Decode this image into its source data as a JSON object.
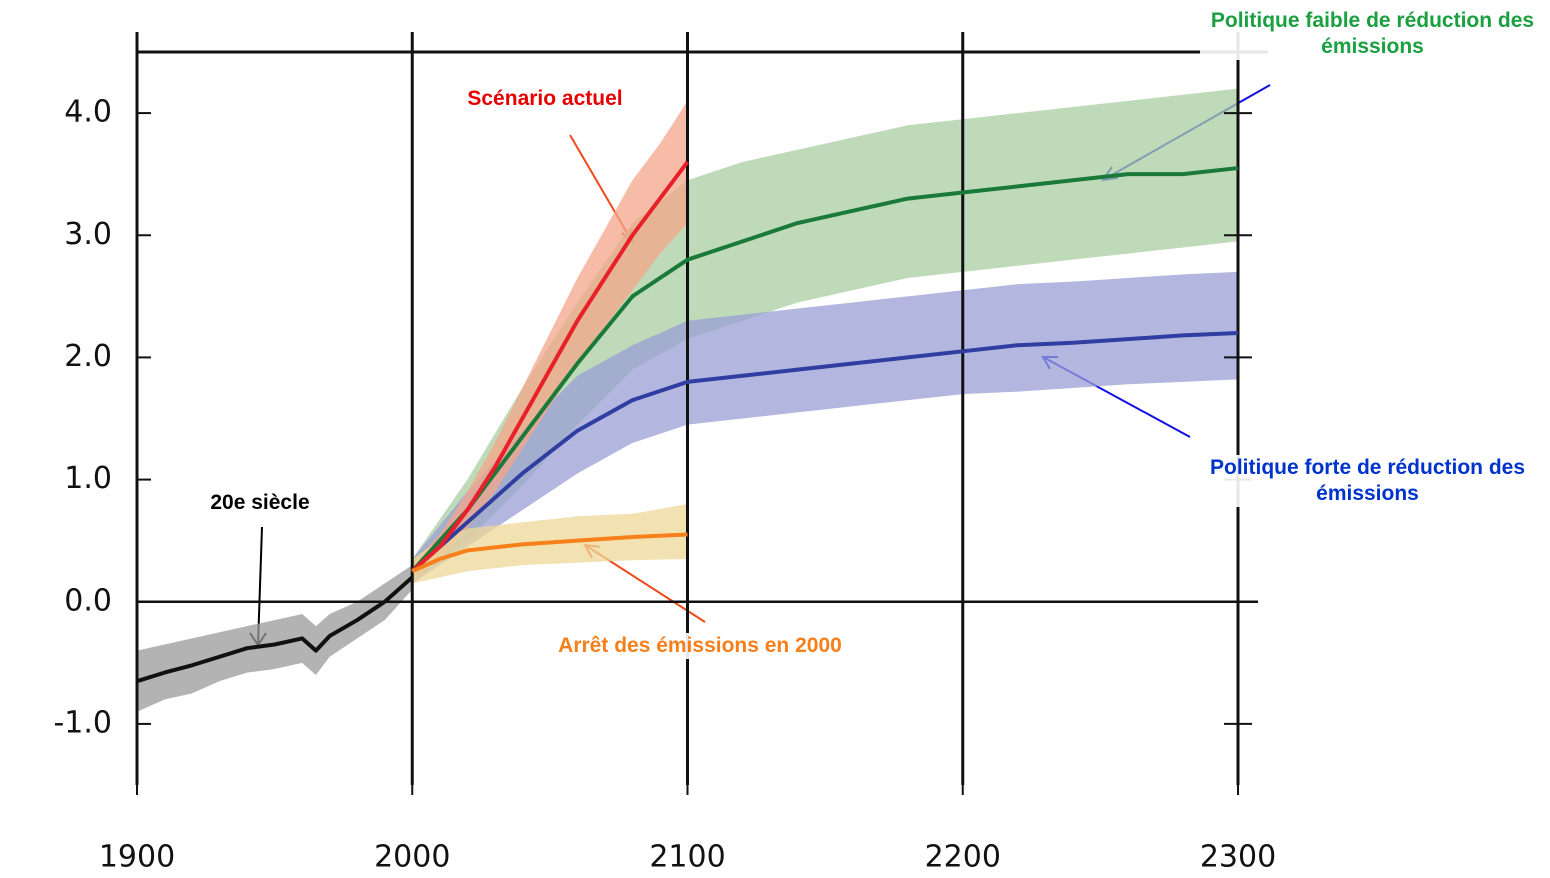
{
  "chart_data": {
    "type": "line",
    "xlim": [
      1900,
      2300
    ],
    "xticks": [
      1900,
      2000,
      2100,
      2200,
      2300
    ],
    "ylim": [
      -1.5,
      4.5
    ],
    "yticks": [
      {
        "value": -1,
        "label": "-1.0"
      },
      {
        "value": 0,
        "label": "0.0"
      },
      {
        "value": 1,
        "label": "1.0"
      },
      {
        "value": 2,
        "label": "2.0"
      },
      {
        "value": 3,
        "label": "3.0"
      },
      {
        "value": 4,
        "label": "4.0"
      }
    ],
    "vlines": [
      2000,
      2100,
      2200
    ],
    "hline": 0,
    "series": [
      {
        "name": "Politique faible de réduction des émissions",
        "color": "#1a7a3a",
        "band_color": "#a9cda0",
        "label_color": "#1aa040",
        "x": [
          2000,
          2020,
          2040,
          2060,
          2080,
          2100,
          2120,
          2140,
          2160,
          2180,
          2200,
          2220,
          2240,
          2260,
          2280,
          2300
        ],
        "values": [
          0.25,
          0.75,
          1.35,
          1.95,
          2.5,
          2.8,
          2.95,
          3.1,
          3.2,
          3.3,
          3.35,
          3.4,
          3.45,
          3.5,
          3.5,
          3.55
        ],
        "lower": [
          0.15,
          0.5,
          0.95,
          1.45,
          1.9,
          2.15,
          2.3,
          2.45,
          2.55,
          2.65,
          2.7,
          2.75,
          2.8,
          2.85,
          2.9,
          2.95
        ],
        "upper": [
          0.35,
          1.0,
          1.75,
          2.45,
          3.1,
          3.45,
          3.6,
          3.7,
          3.8,
          3.9,
          3.95,
          4.0,
          4.05,
          4.1,
          4.15,
          4.2
        ]
      },
      {
        "name": "Politique forte de réduction des émissions",
        "color": "#2f3ea0",
        "band_color": "#9a9fd6",
        "label_color": "#0033cc",
        "x": [
          2000,
          2020,
          2040,
          2060,
          2080,
          2100,
          2120,
          2140,
          2160,
          2180,
          2200,
          2220,
          2240,
          2260,
          2280,
          2300
        ],
        "values": [
          0.25,
          0.65,
          1.05,
          1.4,
          1.65,
          1.8,
          1.85,
          1.9,
          1.95,
          2.0,
          2.05,
          2.1,
          2.12,
          2.15,
          2.18,
          2.2
        ],
        "lower": [
          0.15,
          0.45,
          0.75,
          1.05,
          1.3,
          1.45,
          1.5,
          1.55,
          1.6,
          1.65,
          1.7,
          1.72,
          1.75,
          1.78,
          1.8,
          1.82
        ],
        "upper": [
          0.35,
          0.9,
          1.4,
          1.85,
          2.1,
          2.3,
          2.35,
          2.4,
          2.45,
          2.5,
          2.55,
          2.6,
          2.62,
          2.65,
          2.68,
          2.7
        ]
      },
      {
        "name": "Scénario actuel",
        "color": "#e8202a",
        "band_color": "#f4a58a",
        "label_color": "#e60000",
        "x": [
          2000,
          2010,
          2020,
          2030,
          2040,
          2050,
          2060,
          2070,
          2080,
          2090,
          2100
        ],
        "values": [
          0.25,
          0.45,
          0.75,
          1.1,
          1.5,
          1.9,
          2.3,
          2.65,
          3.0,
          3.3,
          3.6
        ],
        "lower": [
          0.18,
          0.35,
          0.6,
          0.9,
          1.25,
          1.6,
          1.95,
          2.25,
          2.55,
          2.85,
          3.1
        ],
        "upper": [
          0.32,
          0.55,
          0.9,
          1.3,
          1.75,
          2.2,
          2.65,
          3.05,
          3.45,
          3.75,
          4.1
        ]
      },
      {
        "name": "Arrêt des émissions en 2000",
        "color": "#f7801a",
        "band_color": "#eed898",
        "label_color": "#f77f1a",
        "x": [
          2000,
          2010,
          2020,
          2040,
          2060,
          2080,
          2100
        ],
        "values": [
          0.25,
          0.35,
          0.42,
          0.47,
          0.5,
          0.53,
          0.55
        ],
        "lower": [
          0.15,
          0.2,
          0.25,
          0.3,
          0.32,
          0.34,
          0.35
        ],
        "upper": [
          0.35,
          0.5,
          0.6,
          0.65,
          0.7,
          0.72,
          0.8
        ]
      },
      {
        "name": "20e siècle",
        "color": "#111111",
        "band_color": "#999999",
        "label_color": "#000000",
        "x": [
          1900,
          1910,
          1920,
          1930,
          1940,
          1950,
          1960,
          1965,
          1970,
          1980,
          1990,
          2000
        ],
        "values": [
          -0.65,
          -0.58,
          -0.52,
          -0.45,
          -0.38,
          -0.35,
          -0.3,
          -0.4,
          -0.28,
          -0.15,
          0.0,
          0.2
        ],
        "lower": [
          -0.9,
          -0.8,
          -0.75,
          -0.65,
          -0.58,
          -0.55,
          -0.5,
          -0.6,
          -0.45,
          -0.3,
          -0.15,
          0.1
        ],
        "upper": [
          -0.4,
          -0.35,
          -0.3,
          -0.25,
          -0.2,
          -0.15,
          -0.1,
          -0.2,
          -0.1,
          0.0,
          0.15,
          0.3
        ]
      }
    ]
  }
}
